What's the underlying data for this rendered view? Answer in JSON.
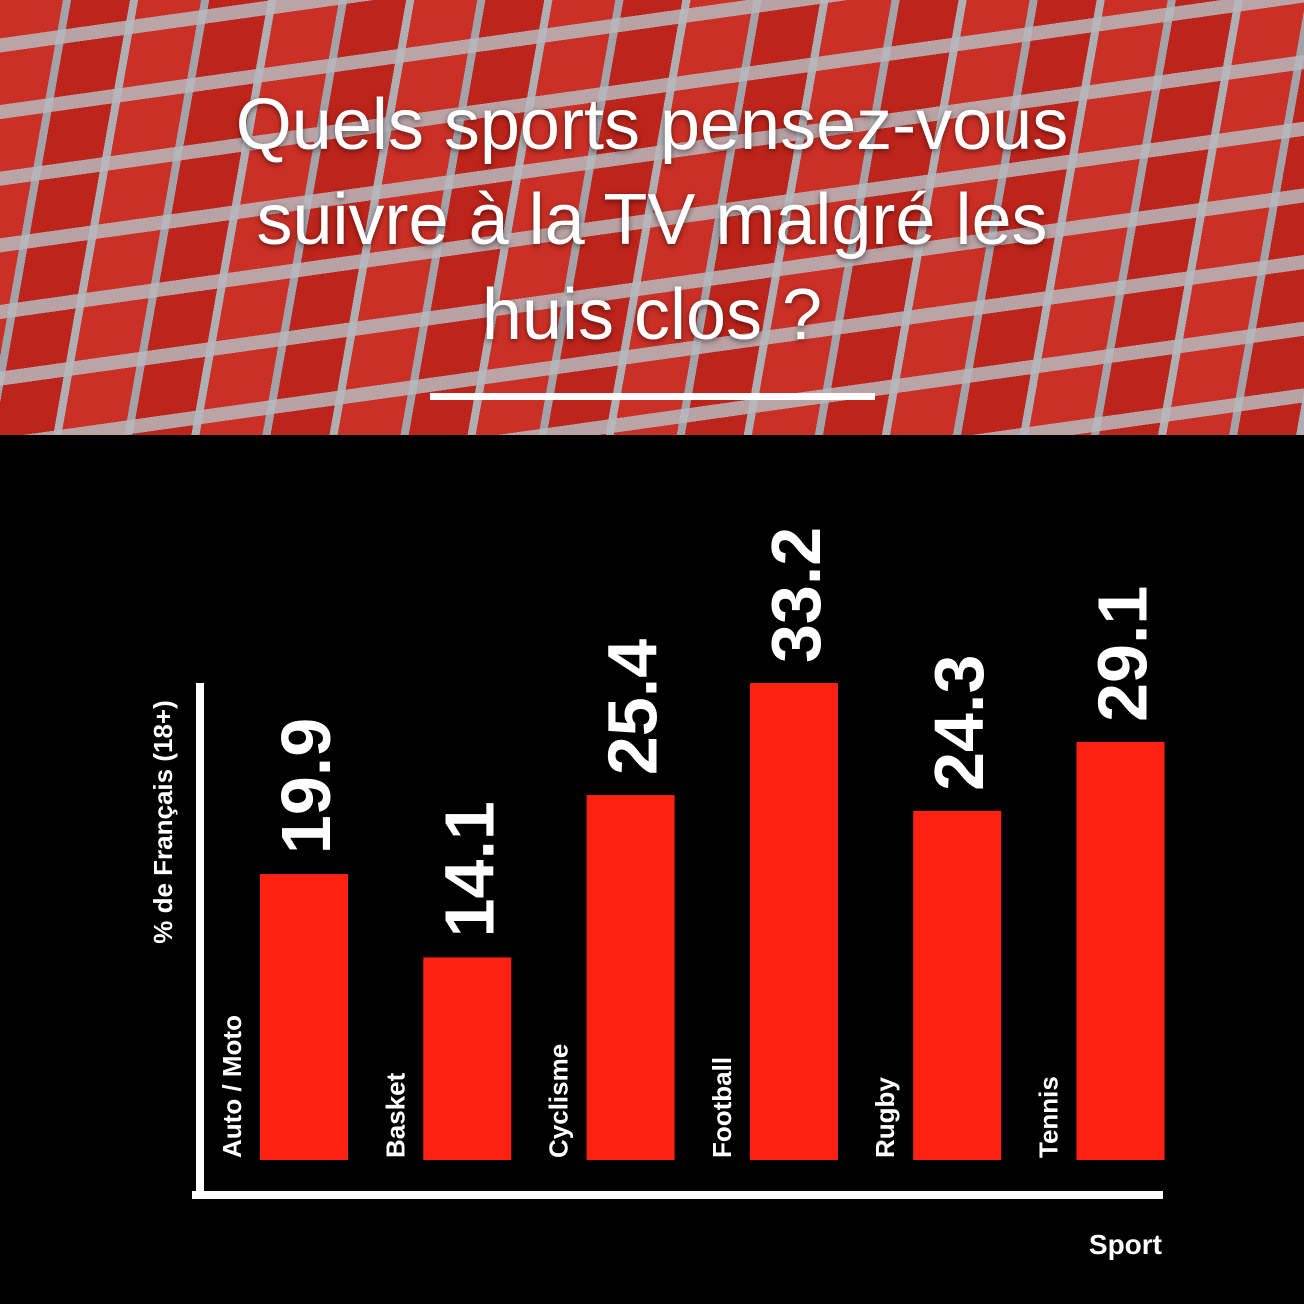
{
  "chart_data": {
    "type": "bar",
    "title": "Quels sports pensez-vous suivre à la TV malgré les huis clos ?",
    "x_label": "Sport",
    "y_label": "% de Français (18+)",
    "categories": [
      "Auto / Moto",
      "Basket",
      "Cyclisme",
      "Football",
      "Rugby",
      "Tennis"
    ],
    "values": [
      19.9,
      14.1,
      25.4,
      33.2,
      24.3,
      29.1
    ],
    "color": "#ff2212",
    "ylim": [
      0,
      33.2
    ]
  }
}
